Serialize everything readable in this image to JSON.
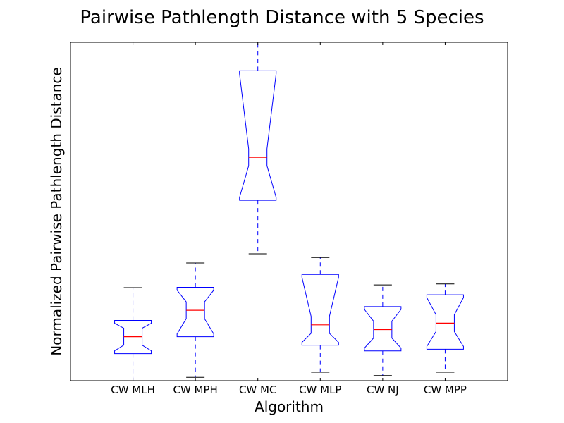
{
  "chart_data": {
    "type": "box",
    "title": "Pairwise Pathlength Distance with 5 Species",
    "xlabel": "Algorithm",
    "ylabel": "Normalized Pairwise Pathlength Distance",
    "ylim": [
      0,
      100
    ],
    "y_ticks_shown": false,
    "notched": true,
    "categories": [
      "CW MLH",
      "CW MPH",
      "CW MC",
      "CW MLP",
      "CW NJ",
      "CW MPP"
    ],
    "series": [
      {
        "whisker_low": 0.0,
        "q1": 8.0,
        "median": 13.0,
        "q3": 17.8,
        "whisker_high": 27.5
      },
      {
        "whisker_low": 1.0,
        "q1": 13.0,
        "median": 20.8,
        "q3": 27.6,
        "whisker_high": 34.8
      },
      {
        "whisker_low": 37.5,
        "q1": 53.3,
        "median": 66.0,
        "q3": 91.6,
        "whisker_high": 100.0
      },
      {
        "whisker_low": 2.5,
        "q1": 10.5,
        "median": 16.5,
        "q3": 31.4,
        "whisker_high": 36.4
      },
      {
        "whisker_low": 1.5,
        "q1": 8.8,
        "median": 15.1,
        "q3": 21.9,
        "whisker_high": 28.3
      },
      {
        "whisker_low": 2.5,
        "q1": 9.3,
        "median": 17.0,
        "q3": 25.4,
        "whisker_high": 28.6
      }
    ],
    "colors": {
      "box": "#0000ff",
      "median": "#ff0000",
      "whisker": "#0000ff",
      "cap": "#000000"
    }
  }
}
